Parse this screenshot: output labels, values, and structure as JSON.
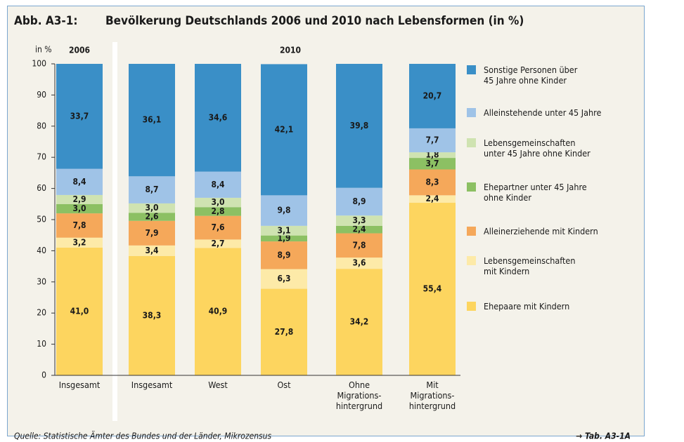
{
  "chart_data": {
    "type": "stacked_bar",
    "figure_label": "Abb. A3-1:",
    "title": "Bevölkerung Deutschlands 2006 und 2010 nach Lebensformen (in %)",
    "y_label": "in %",
    "group_labels": [
      "2006",
      "2010"
    ],
    "categories": [
      "Insgesamt",
      "Insgesamt",
      "West",
      "Ost",
      "Ohne\nMigrations-\nhintergrund",
      "Mit\nMigrations-\nhintergrund"
    ],
    "ylim": [
      0,
      100
    ],
    "yticks": [
      0,
      10,
      20,
      30,
      40,
      50,
      60,
      70,
      80,
      90,
      100
    ],
    "series": [
      {
        "name": "Ehepaare mit Kindern",
        "color": "#fdd55f",
        "values": [
          41.0,
          38.3,
          40.9,
          27.8,
          34.2,
          55.4
        ],
        "value_labels": [
          "41,0",
          "38,3",
          "40,9",
          "27,8",
          "34,2",
          "55,4"
        ]
      },
      {
        "name": "Lebensgemeinschaften\nmit Kindern",
        "color": "#fdeaa8",
        "values": [
          3.2,
          3.4,
          2.7,
          6.3,
          3.6,
          2.4
        ],
        "value_labels": [
          "3,2",
          "3,4",
          "2,7",
          "6,3",
          "3,6",
          "2,4"
        ]
      },
      {
        "name": "Alleinerziehende mit Kindern",
        "color": "#f5a85a",
        "values": [
          7.8,
          7.9,
          7.6,
          8.9,
          7.8,
          8.3
        ],
        "value_labels": [
          "7,8",
          "7,9",
          "7,6",
          "8,9",
          "7,8",
          "8,3"
        ]
      },
      {
        "name": "Ehepartner unter 45 Jahre\nohne Kinder",
        "color": "#8cc063",
        "values": [
          3.0,
          2.6,
          2.8,
          1.9,
          2.4,
          3.7
        ],
        "value_labels": [
          "3,0",
          "2,6",
          "2,8",
          "1,9",
          "2,4",
          "3,7"
        ]
      },
      {
        "name": "Lebensgemeinschaften\nunter 45 Jahre ohne Kinder",
        "color": "#cfe3b1",
        "values": [
          2.9,
          3.0,
          3.0,
          3.1,
          3.3,
          1.8
        ],
        "value_labels": [
          "2,9",
          "3,0",
          "3,0",
          "3,1",
          "3,3",
          "1,8"
        ]
      },
      {
        "name": "Alleinstehende unter 45 Jahre",
        "color": "#9fc3e7",
        "values": [
          8.4,
          8.7,
          8.4,
          9.8,
          8.9,
          7.7
        ],
        "value_labels": [
          "8,4",
          "8,7",
          "8,4",
          "9,8",
          "8,9",
          "7,7"
        ]
      },
      {
        "name": "Sonstige Personen über\n45 Jahre ohne Kinder",
        "color": "#3a8fc7",
        "values": [
          33.7,
          36.1,
          34.6,
          42.1,
          39.8,
          20.7
        ],
        "value_labels": [
          "33,7",
          "36,1",
          "34,6",
          "42,1",
          "39,8",
          "20,7"
        ]
      }
    ],
    "source": "Quelle: Statistische Ämter des Bundes und der Länder, Mikrozensus",
    "reference": "→ Tab. A3-1A"
  }
}
